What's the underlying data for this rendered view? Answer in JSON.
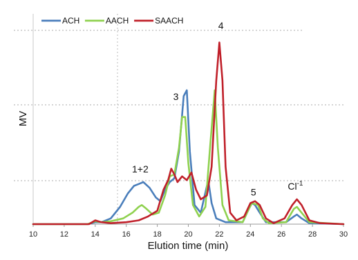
{
  "chart_data": {
    "type": "line",
    "xlabel": "Elution time (min)",
    "ylabel": "MV",
    "xlim": [
      10,
      30
    ],
    "ylim": [
      0,
      11
    ],
    "x_ticks": [
      10,
      12,
      14,
      16,
      18,
      20,
      22,
      24,
      26,
      28,
      30
    ],
    "legend_position": "top-left",
    "series": [
      {
        "name": "ACH",
        "color": "#4a7ebb",
        "points": [
          [
            10,
            0
          ],
          [
            13.5,
            0
          ],
          [
            14,
            0.1
          ],
          [
            14.4,
            0.1
          ],
          [
            15,
            0.3
          ],
          [
            15.6,
            0.9
          ],
          [
            16.1,
            1.6
          ],
          [
            16.5,
            2.0
          ],
          [
            16.8,
            2.1
          ],
          [
            17.1,
            2.2
          ],
          [
            17.5,
            1.9
          ],
          [
            17.9,
            1.4
          ],
          [
            18.2,
            1.2
          ],
          [
            18.5,
            1.8
          ],
          [
            18.8,
            2.2
          ],
          [
            19.1,
            2.4
          ],
          [
            19.4,
            3.8
          ],
          [
            19.7,
            6.7
          ],
          [
            19.9,
            7.0
          ],
          [
            20.1,
            3.8
          ],
          [
            20.4,
            1.0
          ],
          [
            20.8,
            0.6
          ],
          [
            21.2,
            2.0
          ],
          [
            21.3,
            2.2
          ],
          [
            21.5,
            1.1
          ],
          [
            21.8,
            0.3
          ],
          [
            22.4,
            0.1
          ],
          [
            23.5,
            0.1
          ],
          [
            23.9,
            0.8
          ],
          [
            24.1,
            1.1
          ],
          [
            24.3,
            1.0
          ],
          [
            24.6,
            0.6
          ],
          [
            25.0,
            0.1
          ],
          [
            26.3,
            0.1
          ],
          [
            26.8,
            0.4
          ],
          [
            27.0,
            0.5
          ],
          [
            27.3,
            0.3
          ],
          [
            27.8,
            0.05
          ],
          [
            30,
            0
          ]
        ]
      },
      {
        "name": "AACH",
        "color": "#8fd14f",
        "points": [
          [
            10,
            0
          ],
          [
            13.5,
            0
          ],
          [
            14,
            0.15
          ],
          [
            14.4,
            0.1
          ],
          [
            15,
            0.15
          ],
          [
            15.8,
            0.3
          ],
          [
            16.4,
            0.6
          ],
          [
            16.8,
            0.9
          ],
          [
            17.0,
            1.0
          ],
          [
            17.3,
            0.8
          ],
          [
            17.7,
            0.5
          ],
          [
            18.1,
            0.6
          ],
          [
            18.5,
            1.5
          ],
          [
            18.8,
            2.5
          ],
          [
            19.1,
            2.6
          ],
          [
            19.4,
            4.0
          ],
          [
            19.6,
            5.6
          ],
          [
            19.8,
            5.6
          ],
          [
            20.0,
            3.2
          ],
          [
            20.3,
            1.0
          ],
          [
            20.7,
            0.4
          ],
          [
            21.1,
            0.9
          ],
          [
            21.4,
            4.0
          ],
          [
            21.7,
            7.0
          ],
          [
            21.9,
            4.0
          ],
          [
            22.2,
            1.0
          ],
          [
            22.6,
            0.2
          ],
          [
            23.5,
            0.1
          ],
          [
            23.9,
            0.8
          ],
          [
            24.1,
            1.1
          ],
          [
            24.5,
            1.0
          ],
          [
            24.8,
            0.3
          ],
          [
            25.2,
            0.05
          ],
          [
            26.3,
            0.1
          ],
          [
            26.8,
            0.8
          ],
          [
            27.0,
            0.9
          ],
          [
            27.3,
            0.6
          ],
          [
            27.8,
            0.1
          ],
          [
            30,
            0
          ]
        ]
      },
      {
        "name": "SAACH",
        "color": "#c0202a",
        "points": [
          [
            10,
            0
          ],
          [
            13.6,
            0
          ],
          [
            14,
            0.2
          ],
          [
            14.4,
            0.1
          ],
          [
            15,
            0.05
          ],
          [
            16,
            0.1
          ],
          [
            16.8,
            0.2
          ],
          [
            17.4,
            0.4
          ],
          [
            18.0,
            0.7
          ],
          [
            18.4,
            1.8
          ],
          [
            18.7,
            2.3
          ],
          [
            18.9,
            2.9
          ],
          [
            19.1,
            2.6
          ],
          [
            19.3,
            2.2
          ],
          [
            19.6,
            2.5
          ],
          [
            19.9,
            2.3
          ],
          [
            20.2,
            2.7
          ],
          [
            20.5,
            1.8
          ],
          [
            20.8,
            1.3
          ],
          [
            21.2,
            1.5
          ],
          [
            21.5,
            3.0
          ],
          [
            21.8,
            7.5
          ],
          [
            22.0,
            9.5
          ],
          [
            22.2,
            7.5
          ],
          [
            22.4,
            3.0
          ],
          [
            22.7,
            0.6
          ],
          [
            23.1,
            0.2
          ],
          [
            23.6,
            0.4
          ],
          [
            24.0,
            1.1
          ],
          [
            24.3,
            1.2
          ],
          [
            24.6,
            1.0
          ],
          [
            25.0,
            0.3
          ],
          [
            25.5,
            0.05
          ],
          [
            26.2,
            0.3
          ],
          [
            26.7,
            1.0
          ],
          [
            27.0,
            1.3
          ],
          [
            27.3,
            1.0
          ],
          [
            27.8,
            0.2
          ],
          [
            28.5,
            0.05
          ],
          [
            30,
            0
          ]
        ]
      }
    ],
    "annotations": [
      {
        "text": "1+2",
        "x": 16.9,
        "y": 2.7
      },
      {
        "text": "3",
        "x": 19.2,
        "y": 6.5
      },
      {
        "text": "4",
        "x": 22.1,
        "y": 10.2
      },
      {
        "text": "5",
        "x": 24.2,
        "y": 1.5
      },
      {
        "text": "Cl",
        "sup": "-1",
        "x": 26.9,
        "y": 1.8
      }
    ]
  }
}
